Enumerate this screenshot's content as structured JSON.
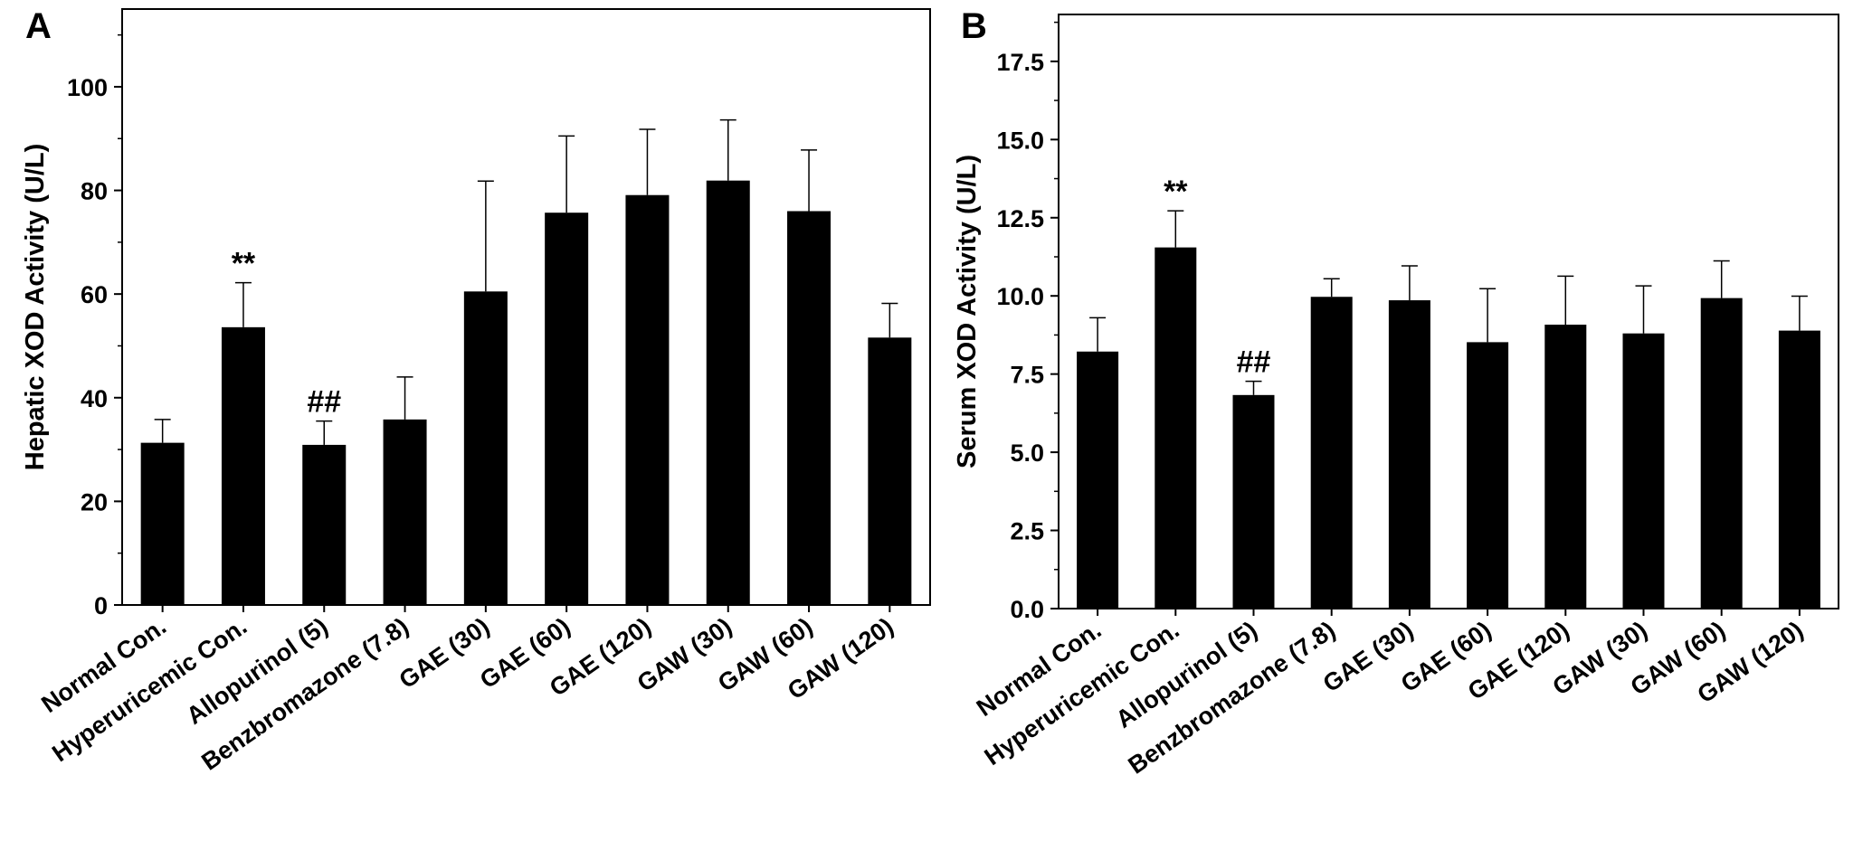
{
  "chart_data": [
    {
      "type": "bar",
      "panel_label": "A",
      "title": "",
      "xlabel": "",
      "ylabel": "Hepatic XOD Activity (U/L)",
      "ylim": [
        0,
        115
      ],
      "yticks": [
        0,
        20,
        40,
        60,
        80,
        100
      ],
      "ytick_labels": [
        "0",
        "20",
        "40",
        "60",
        "80",
        "100"
      ],
      "ytick_minor_step": 10,
      "grid": false,
      "categories": [
        "Normal Con.",
        "Hyperuricemic Con.",
        "Allopurinol (5)",
        "Benzbromazone (7.8)",
        "GAE (30)",
        "GAE (60)",
        "GAE (120)",
        "GAW (30)",
        "GAW (60)",
        "GAW (120)"
      ],
      "values": [
        31.3,
        53.6,
        30.9,
        35.8,
        60.5,
        75.7,
        79.1,
        81.9,
        76.0,
        51.6
      ],
      "errors": [
        4.5,
        8.6,
        4.6,
        8.2,
        21.3,
        14.8,
        12.7,
        11.7,
        11.8,
        6.6
      ],
      "annotations": [
        "",
        "**",
        "##",
        "",
        "",
        "",
        "",
        "",
        "",
        ""
      ],
      "color": "#000000"
    },
    {
      "type": "bar",
      "panel_label": "B",
      "title": "",
      "xlabel": "",
      "ylabel": "Serum XOD Activity (U/L)",
      "ylim": [
        0,
        19
      ],
      "yticks": [
        0,
        2.5,
        5,
        7.5,
        10,
        12.5,
        15,
        17.5
      ],
      "ytick_labels": [
        "0.0",
        "2.5",
        "5.0",
        "7.5",
        "10.0",
        "12.5",
        "15.0",
        "17.5"
      ],
      "ytick_minor_step": 1.25,
      "grid": false,
      "categories": [
        "Normal Con.",
        "Hyperuricemic Con.",
        "Allopurinol (5)",
        "Benzbromazone (7.8)",
        "GAE (30)",
        "GAE (60)",
        "GAE (120)",
        "GAW (30)",
        "GAW (60)",
        "GAW (120)"
      ],
      "values": [
        8.22,
        11.55,
        6.83,
        9.97,
        9.86,
        8.52,
        9.08,
        8.8,
        9.93,
        8.89
      ],
      "errors": [
        1.08,
        1.17,
        0.44,
        0.58,
        1.1,
        1.71,
        1.55,
        1.52,
        1.19,
        1.1
      ],
      "annotations": [
        "",
        "**",
        "##",
        "",
        "",
        "",
        "",
        "",
        "",
        ""
      ],
      "color": "#000000"
    }
  ]
}
